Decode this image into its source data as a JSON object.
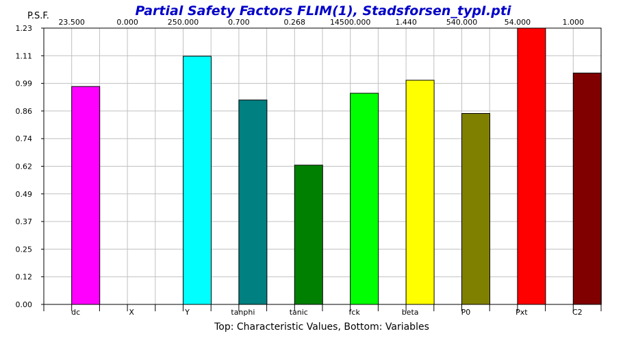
{
  "chart_data": {
    "type": "bar",
    "title": "Partial Safety Factors FLIM(1), Stadsforsen_typI.pti",
    "ylabel": "P.S.F.",
    "xlabel": "Top: Characteristic Values, Bottom: Variables",
    "ylim": [
      0,
      1.23
    ],
    "yticks": [
      "0.00",
      "0.12",
      "0.25",
      "0.37",
      "0.49",
      "0.62",
      "0.74",
      "0.86",
      "0.99",
      "1.11",
      "1.23"
    ],
    "grid": true,
    "categories": [
      "dc",
      "X",
      "Y",
      "tanphi",
      "tanic",
      "fck",
      "beta",
      "P0",
      "Pxt",
      "C2"
    ],
    "top_labels": [
      "23.500",
      "0.000",
      "250.000",
      "0.700",
      "0.268",
      "14500.000",
      "1.440",
      "540.000",
      "54.000",
      "1.000"
    ],
    "values": [
      0.97,
      0.0,
      1.105,
      0.91,
      0.62,
      0.94,
      0.998,
      0.85,
      1.23,
      1.03
    ],
    "colors": [
      "#ff00ff",
      "#ffffff",
      "#00ffff",
      "#008080",
      "#008000",
      "#00ff00",
      "#ffff00",
      "#808000",
      "#ff0000",
      "#800000"
    ]
  }
}
